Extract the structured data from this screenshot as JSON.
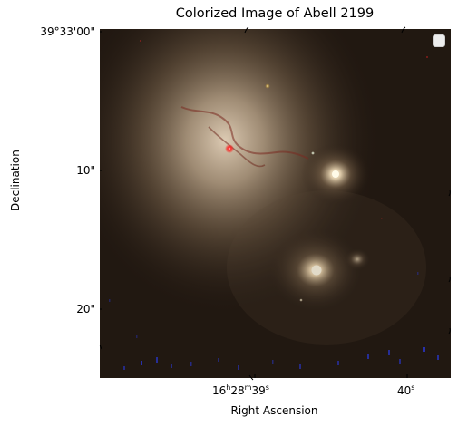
{
  "figure": {
    "title": "Colorized Image of Abell 2199",
    "xlabel": "Right Ascension",
    "ylabel": "Declination"
  },
  "axes": {
    "x_ticks": [
      {
        "label_html": "16<sup>h</sup>28<sup>m</sup>39<sup>s</sup>",
        "text": "16h28m39s"
      },
      {
        "label_html": "40<sup>s</sup>",
        "text": "40s"
      }
    ],
    "y_ticks": [
      {
        "text": "39°33'00\""
      },
      {
        "text": "10\""
      },
      {
        "text": "20\""
      }
    ]
  },
  "image": {
    "background_color": "#1c140e",
    "halo_color": "#d8c2a6",
    "core_color": "#fff3d8",
    "highlight_red": "#ff2020",
    "noise_blue": "#2233cc"
  },
  "legend": {
    "visible": true,
    "position": "upper right",
    "entries": []
  }
}
